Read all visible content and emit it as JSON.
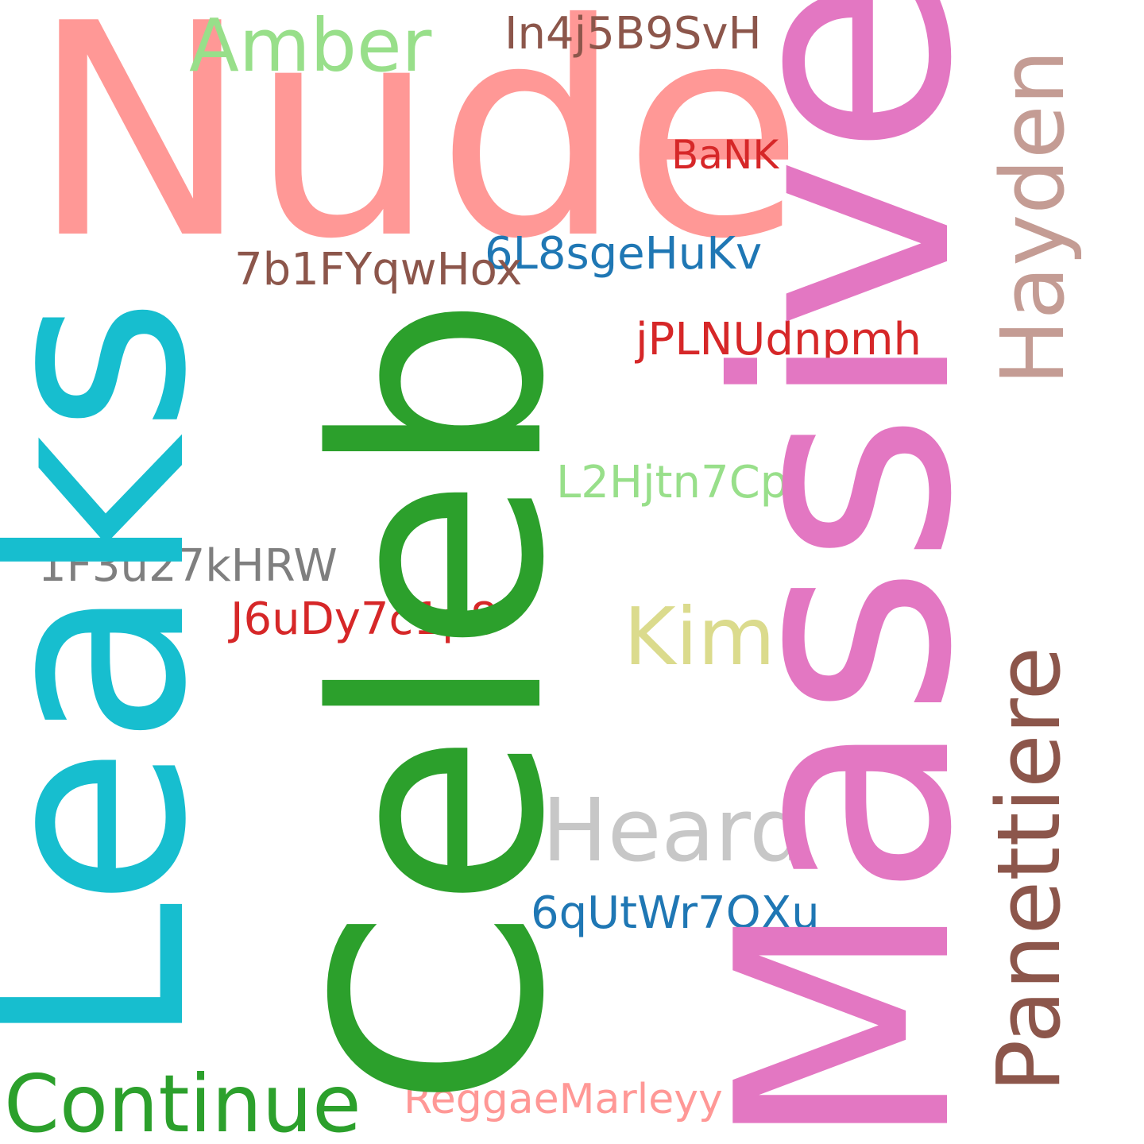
{
  "words": {
    "nude": {
      "text": "Nude",
      "color": "#ff9896"
    },
    "amber": {
      "text": "Amber",
      "color": "#98df8a"
    },
    "in4j5b9svh": {
      "text": "In4j5B9SvH",
      "color": "#8c564b"
    },
    "bank": {
      "text": "BaNK",
      "color": "#d62728"
    },
    "l8sgehukv": {
      "text": "6L8sgeHuKv",
      "color": "#1f77b4"
    },
    "b1fyqwhox": {
      "text": "7b1FYqwHox",
      "color": "#8c564b"
    },
    "jplnudnpmh": {
      "text": "jPLNUdnpmh",
      "color": "#d62728"
    },
    "l2hjtn7cpj": {
      "text": "L2Hjtn7Cpj",
      "color": "#98df8a"
    },
    "f3u27khrw": {
      "text": "1F3u27kHRW",
      "color": "#7f7f7f"
    },
    "j6udy7c1p8": {
      "text": "J6uDy7c1p8",
      "color": "#d62728"
    },
    "kim": {
      "text": "Kim",
      "color": "#dbdb8d"
    },
    "heard": {
      "text": "Heard",
      "color": "#c7c7c7"
    },
    "qutwr7qxu": {
      "text": "6qUtWr7QXu",
      "color": "#1f77b4"
    },
    "continue": {
      "text": "Continue",
      "color": "#2ca02c"
    },
    "reggae": {
      "text": "ReggaeMarleyy",
      "color": "#ff9896"
    },
    "leaks": {
      "text": "Leaks",
      "color": "#17becf"
    },
    "celeb": {
      "text": "Celeb",
      "color": "#2ca02c"
    },
    "massive": {
      "text": "Massive",
      "color": "#e377c2"
    },
    "hayden": {
      "text": "Hayden",
      "color": "#c49c94"
    },
    "panettiere": {
      "text": "Panettiere",
      "color": "#8c564b"
    }
  }
}
